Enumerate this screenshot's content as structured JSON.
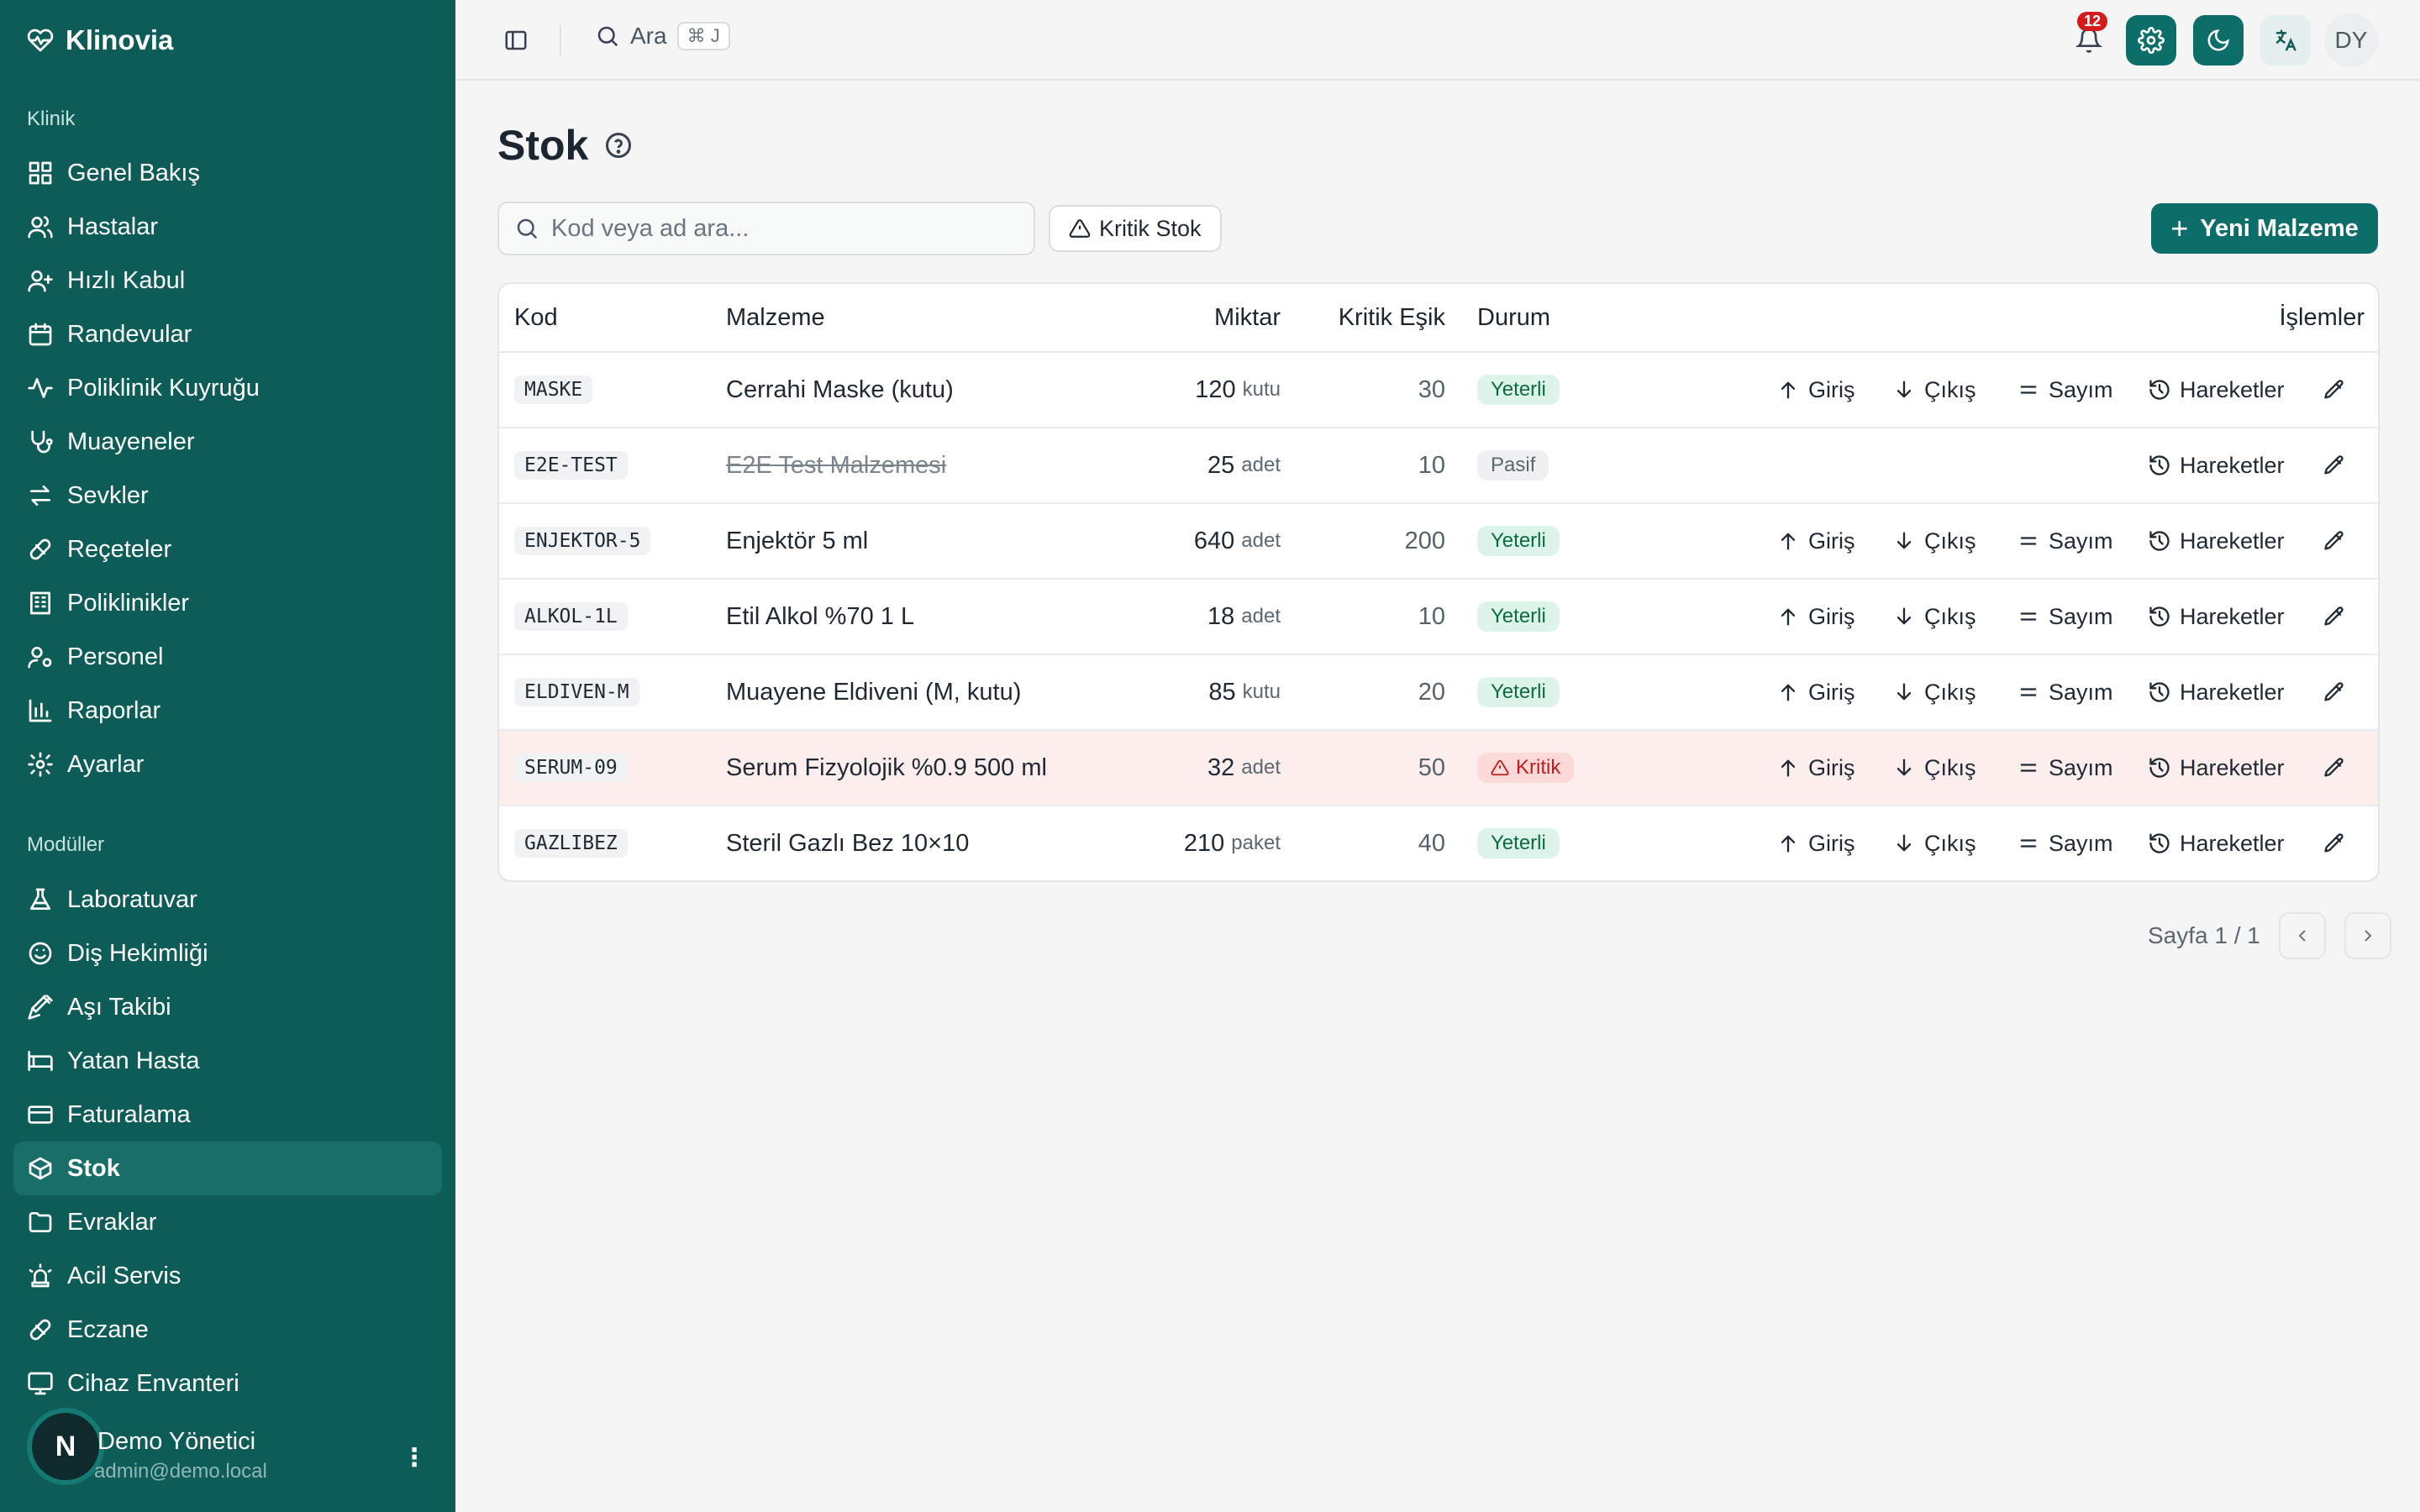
{
  "app": {
    "name": "Klinovia"
  },
  "sidebar": {
    "section_klinik": "Klinik",
    "klinik_items": [
      {
        "label": "Genel Bakış"
      },
      {
        "label": "Hastalar"
      },
      {
        "label": "Hızlı Kabul"
      },
      {
        "label": "Randevular"
      },
      {
        "label": "Poliklinik Kuyruğu"
      },
      {
        "label": "Muayeneler"
      },
      {
        "label": "Sevkler"
      },
      {
        "label": "Reçeteler"
      },
      {
        "label": "Poliklinikler"
      },
      {
        "label": "Personel"
      },
      {
        "label": "Raporlar"
      },
      {
        "label": "Ayarlar"
      }
    ],
    "section_moduller": "Modüller",
    "modul_items": [
      {
        "label": "Laboratuvar"
      },
      {
        "label": "Diş Hekimliği"
      },
      {
        "label": "Aşı Takibi"
      },
      {
        "label": "Yatan Hasta"
      },
      {
        "label": "Faturalama"
      },
      {
        "label": "Stok"
      },
      {
        "label": "Evraklar"
      },
      {
        "label": "Acil Servis"
      },
      {
        "label": "Eczane"
      },
      {
        "label": "Cihaz Envanteri"
      }
    ],
    "active": "Stok",
    "user": {
      "initial": "N",
      "name": "Demo Yönetici",
      "email": "admin@demo.local"
    }
  },
  "topbar": {
    "search_label": "Ara",
    "search_kbd": "⌘ J",
    "notification_count": "12",
    "user_initials": "DY"
  },
  "page": {
    "title": "Stok",
    "search_placeholder": "Kod veya ad ara...",
    "filter_label": "Kritik Stok",
    "new_button": "Yeni Malzeme"
  },
  "table": {
    "headers": {
      "code": "Kod",
      "name": "Malzeme",
      "qty": "Miktar",
      "threshold": "Kritik Eşik",
      "status": "Durum",
      "actions": "İşlemler"
    },
    "action_labels": {
      "in": "Giriş",
      "out": "Çıkış",
      "count": "Sayım",
      "history": "Hareketler"
    },
    "rows": [
      {
        "code": "MASKE",
        "name": "Cerrahi Maske (kutu)",
        "qty": "120",
        "unit": "kutu",
        "threshold": "30",
        "status": "Yeterli",
        "state": "ok"
      },
      {
        "code": "E2E-TEST",
        "name": "E2E Test Malzemesi",
        "qty": "25",
        "unit": "adet",
        "threshold": "10",
        "status": "Pasif",
        "state": "off"
      },
      {
        "code": "ENJEKTOR-5",
        "name": "Enjektör 5 ml",
        "qty": "640",
        "unit": "adet",
        "threshold": "200",
        "status": "Yeterli",
        "state": "ok"
      },
      {
        "code": "ALKOL-1L",
        "name": "Etil Alkol %70 1 L",
        "qty": "18",
        "unit": "adet",
        "threshold": "10",
        "status": "Yeterli",
        "state": "ok"
      },
      {
        "code": "ELDIVEN-M",
        "name": "Muayene Eldiveni (M, kutu)",
        "qty": "85",
        "unit": "kutu",
        "threshold": "20",
        "status": "Yeterli",
        "state": "ok"
      },
      {
        "code": "SERUM-09",
        "name": "Serum Fizyolojik %0.9 500 ml",
        "qty": "32",
        "unit": "adet",
        "threshold": "50",
        "status": "Kritik",
        "state": "crit"
      },
      {
        "code": "GAZLIBEZ",
        "name": "Steril Gazlı Bez 10×10",
        "qty": "210",
        "unit": "paket",
        "threshold": "40",
        "status": "Yeterli",
        "state": "ok"
      }
    ]
  },
  "pager": {
    "label": "Sayfa 1 / 1"
  },
  "colors": {
    "sidebar": "#0d5c58",
    "accent": "#0d6e69",
    "critical_row": "#fdeeee"
  }
}
